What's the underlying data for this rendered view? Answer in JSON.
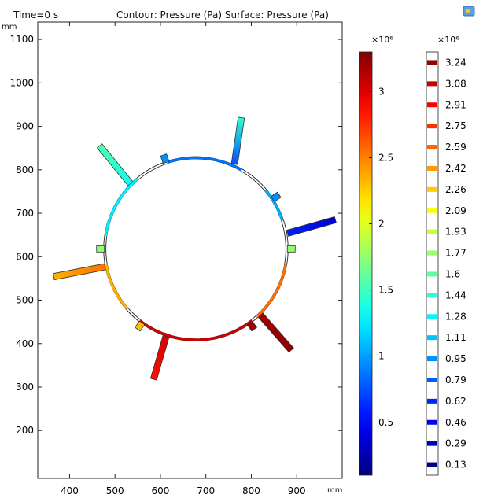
{
  "header": {
    "time_label": "Time=0 s",
    "title": "Contour: Pressure (Pa)  Surface: Pressure (Pa)",
    "corner_icon": "plot-window-icon"
  },
  "chart_data": {
    "type": "heatmap",
    "title": "Contour: Pressure (Pa)  Surface: Pressure (Pa)",
    "subtitle": "Time=0 s",
    "x_unit": "mm",
    "y_unit": "mm",
    "xlim": [
      330,
      1000
    ],
    "ylim": [
      90,
      1140
    ],
    "x_ticks": [
      400,
      500,
      600,
      700,
      800,
      900
    ],
    "y_ticks": [
      200,
      300,
      400,
      500,
      600,
      700,
      800,
      900,
      1000,
      1100
    ],
    "grid": false,
    "ring": {
      "center": [
        678,
        618
      ],
      "inner_radius": 198,
      "outer_radius": 203
    },
    "pipes": [
      {
        "start": [
          763,
          813
        ],
        "end": [
          778,
          920
        ],
        "width": 14,
        "p_in": 0.75,
        "p_out": 1.45
      },
      {
        "start": [
          880,
          654
        ],
        "end": [
          985,
          685
        ],
        "width": 14,
        "p_in": 0.6,
        "p_out": 0.35
      },
      {
        "start": [
          820,
          466
        ],
        "end": [
          888,
          385
        ],
        "width": 14,
        "p_in": 3.2,
        "p_out": 3.25
      },
      {
        "start": [
          614,
          423
        ],
        "end": [
          585,
          318
        ],
        "width": 14,
        "p_in": 3.05,
        "p_out": 2.85
      },
      {
        "start": [
          478,
          577
        ],
        "end": [
          365,
          554
        ],
        "width": 14,
        "p_in": 2.55,
        "p_out": 2.35
      },
      {
        "start": [
          534,
          768
        ],
        "end": [
          466,
          855
        ],
        "width": 14,
        "p_in": 1.35,
        "p_out": 1.55
      }
    ],
    "stubs": [
      {
        "angle": 0,
        "p": 1.75
      },
      {
        "angle": 33,
        "p": 0.95
      },
      {
        "angle": 109,
        "p": 0.95
      },
      {
        "angle": 180,
        "p": 1.75
      },
      {
        "angle": 234,
        "p": 2.3
      },
      {
        "angle": 306,
        "p": 3.2
      }
    ],
    "arcs": [
      {
        "from": 60,
        "to": 108,
        "p": 0.85
      },
      {
        "from": 18,
        "to": 40,
        "p": 1.05
      },
      {
        "from": 130,
        "to": 172,
        "p": 1.25
      },
      {
        "from": -48,
        "to": -10,
        "p": 2.55
      },
      {
        "from": -128,
        "to": -52,
        "p": 3.05
      },
      {
        "from": -170,
        "to": -140,
        "p": 2.35
      }
    ],
    "colorbar_continuous": {
      "label": "Pressure (Pa)",
      "multiplier": "×10⁶",
      "min": 0.1,
      "max": 3.3,
      "ticks": [
        0.5,
        1,
        1.5,
        2,
        2.5,
        3
      ],
      "tick_labels": [
        "0.5",
        "1",
        "1.5",
        "2",
        "2.5",
        "3"
      ]
    },
    "colorbar_contour": {
      "label": "Pressure (Pa)",
      "multiplier": "×10⁶",
      "levels": [
        3.24,
        3.08,
        2.91,
        2.75,
        2.59,
        2.42,
        2.26,
        2.09,
        1.93,
        1.77,
        1.6,
        1.44,
        1.28,
        1.11,
        0.95,
        0.79,
        0.62,
        0.46,
        0.29,
        0.13
      ],
      "level_labels": [
        "3.24",
        "3.08",
        "2.91",
        "2.75",
        "2.59",
        "2.42",
        "2.26",
        "2.09",
        "1.93",
        "1.77",
        "1.6",
        "1.44",
        "1.28",
        "1.11",
        "0.95",
        "0.79",
        "0.62",
        "0.46",
        "0.29",
        "0.13"
      ]
    }
  }
}
